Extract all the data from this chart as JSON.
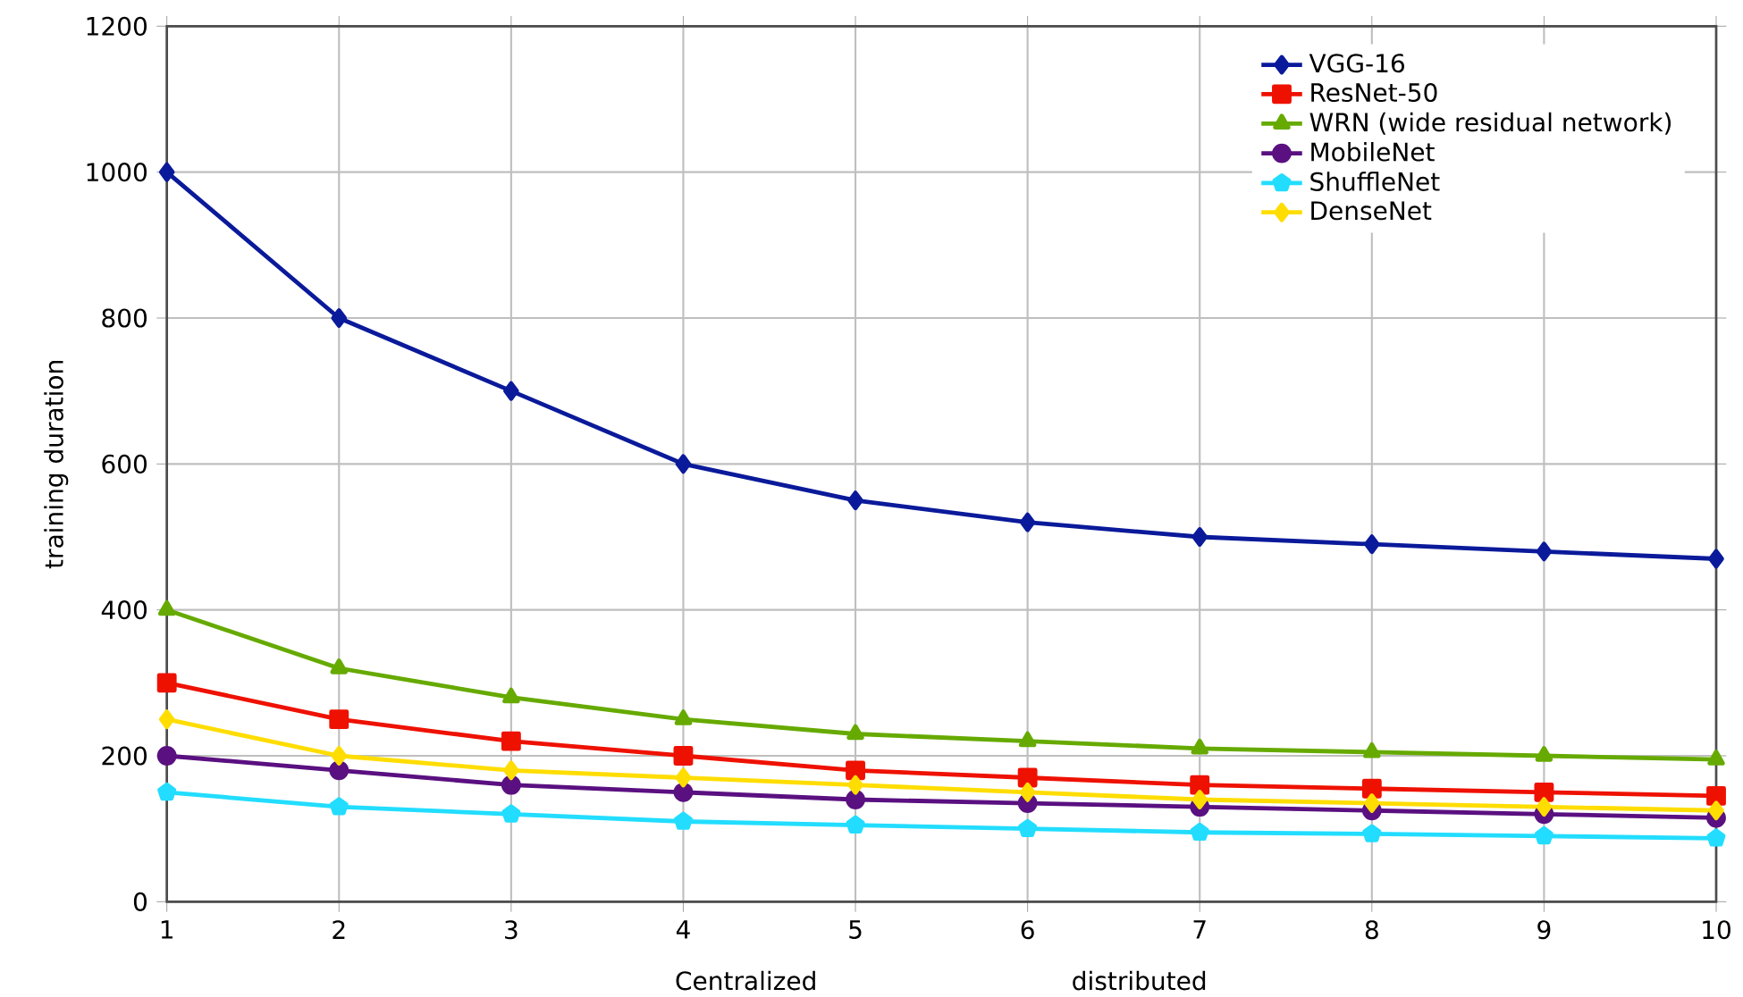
{
  "chart_data": {
    "type": "line",
    "ylabel": "training duration",
    "annotations": [
      "Centralized",
      "distributed"
    ],
    "x": [
      1,
      2,
      3,
      4,
      5,
      6,
      7,
      8,
      9,
      10
    ],
    "xlim": [
      1,
      10
    ],
    "xticks": [
      1,
      2,
      3,
      4,
      5,
      6,
      7,
      8,
      9,
      10
    ],
    "ylim": [
      0,
      1200
    ],
    "yticks": [
      0,
      200,
      400,
      600,
      800,
      1000,
      1200
    ],
    "grid": true,
    "legend": "top right",
    "line_style": "solid",
    "series": [
      {
        "name": "VGG-16",
        "color": "#0a1a9a",
        "marker": "diamond",
        "values": [
          1000,
          800,
          700,
          600,
          550,
          520,
          500,
          490,
          480,
          470
        ]
      },
      {
        "name": "ResNet-50",
        "color": "#ee1100",
        "marker": "square",
        "values": [
          300,
          250,
          220,
          200,
          180,
          170,
          160,
          155,
          150,
          145
        ]
      },
      {
        "name": "WRN (wide residual network)",
        "color": "#66aa00",
        "marker": "triangle",
        "values": [
          400,
          320,
          280,
          250,
          230,
          220,
          210,
          205,
          200,
          195
        ]
      },
      {
        "name": "MobileNet",
        "color": "#5a1080",
        "marker": "circle",
        "values": [
          200,
          180,
          160,
          150,
          140,
          135,
          130,
          125,
          120,
          115
        ]
      },
      {
        "name": "ShuffleNet",
        "color": "#22ddff",
        "marker": "star",
        "values": [
          150,
          130,
          120,
          110,
          105,
          100,
          95,
          93,
          90,
          87
        ]
      },
      {
        "name": "DenseNet",
        "color": "#ffdd00",
        "marker": "diamond",
        "values": [
          250,
          200,
          180,
          170,
          160,
          150,
          140,
          135,
          130,
          125
        ]
      }
    ]
  }
}
